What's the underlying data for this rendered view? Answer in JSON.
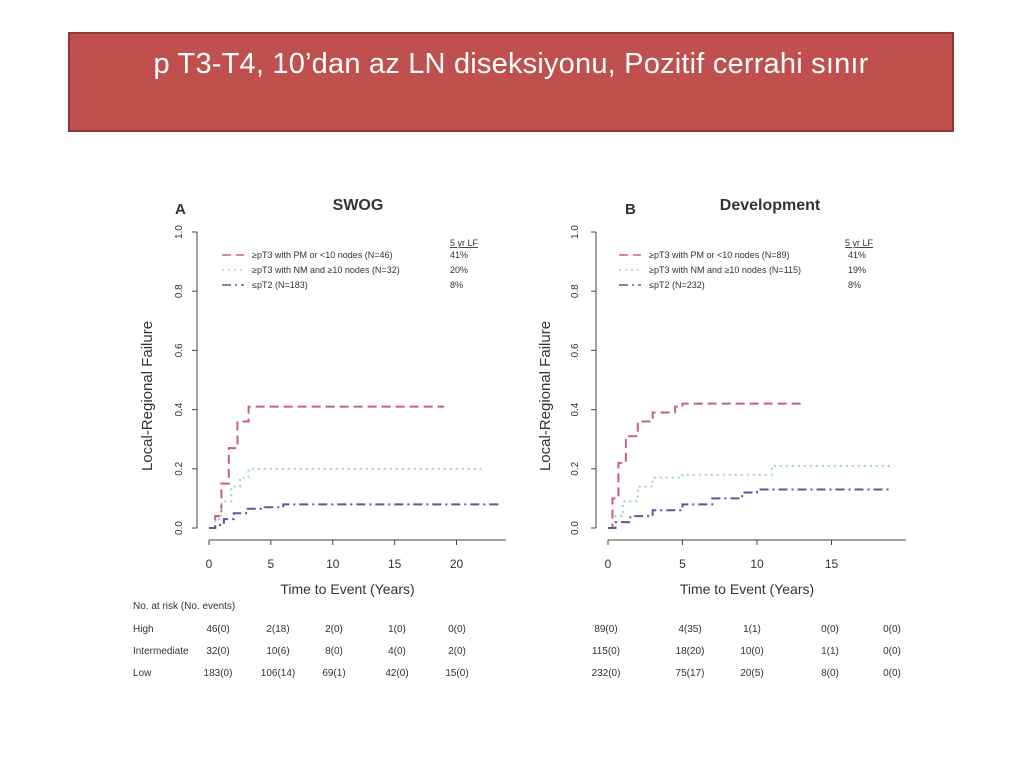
{
  "slide": {
    "title": "p T3-T4, 10’dan az LN diseksiyonu, Pozitif cerrahi sınır"
  },
  "colors": {
    "title_bg": "#c0504d",
    "high": "#c8607a",
    "intermediate": "#9fd0d8",
    "low": "#5a5a9a"
  },
  "chart_data": [
    {
      "type": "line",
      "panel_letter": "A",
      "title": "SWOG",
      "xlabel": "Time to Event (Years)",
      "ylabel": "Local-Regional Failure",
      "xlim": [
        0,
        24
      ],
      "ylim": [
        0,
        1.0
      ],
      "x_ticks": [
        0,
        5,
        10,
        15,
        20
      ],
      "y_ticks": [
        "0.0",
        "0.2",
        "0.4",
        "0.6",
        "0.8",
        "1.0"
      ],
      "legend_header": "5 yr LF",
      "series": [
        {
          "name": "≥pT3 with PM or <10 nodes (N=46)",
          "lf": "41%",
          "style": "dashed",
          "x": [
            0,
            0.5,
            1.0,
            1.6,
            2.3,
            3.2,
            19
          ],
          "y": [
            0,
            0.04,
            0.15,
            0.27,
            0.36,
            0.41,
            0.41
          ]
        },
        {
          "name": "≥pT3 with NM and ≥10 nodes (N=32)",
          "lf": "20%",
          "style": "dotted",
          "x": [
            0,
            0.5,
            1.0,
            1.8,
            2.5,
            3.2,
            22
          ],
          "y": [
            0,
            0.03,
            0.09,
            0.14,
            0.17,
            0.2,
            0.2
          ]
        },
        {
          "name": "≤pT2 (N=183)",
          "lf": "8%",
          "style": "dashdot",
          "x": [
            0,
            0.5,
            1.2,
            2.0,
            3.0,
            4.5,
            6.0,
            23.5
          ],
          "y": [
            0,
            0.01,
            0.03,
            0.05,
            0.065,
            0.07,
            0.08,
            0.08
          ]
        }
      ],
      "risk_table": {
        "header": "No. at risk (No. events)",
        "rows": [
          {
            "label": "High",
            "values": [
              "46(0)",
              "2(18)",
              "2(0)",
              "1(0)",
              "0(0)"
            ]
          },
          {
            "label": "Intermediate",
            "values": [
              "32(0)",
              "10(6)",
              "8(0)",
              "4(0)",
              "2(0)"
            ]
          },
          {
            "label": "Low",
            "values": [
              "183(0)",
              "106(14)",
              "69(1)",
              "42(0)",
              "15(0)"
            ]
          }
        ]
      }
    },
    {
      "type": "line",
      "panel_letter": "B",
      "title": "Development",
      "xlabel": "Time to Event (Years)",
      "ylabel": "Local-Regional Failure",
      "xlim": [
        0,
        20
      ],
      "ylim": [
        0,
        1.0
      ],
      "x_ticks": [
        0,
        5,
        10,
        15
      ],
      "y_ticks": [
        "0.0",
        "0.2",
        "0.4",
        "0.6",
        "0.8",
        "1.0"
      ],
      "legend_header": "5 yr LF",
      "series": [
        {
          "name": "≥pT3 with PM or <10 nodes (N=89)",
          "lf": "41%",
          "style": "dashed",
          "x": [
            0,
            0.3,
            0.7,
            1.2,
            2.0,
            3.0,
            4.5,
            5.0,
            13
          ],
          "y": [
            0,
            0.1,
            0.22,
            0.31,
            0.36,
            0.39,
            0.41,
            0.42,
            0.42
          ]
        },
        {
          "name": "≥pT3 with NM and ≥10 nodes (N=115)",
          "lf": "19%",
          "style": "dotted",
          "x": [
            0,
            0.5,
            1.0,
            2.0,
            3.0,
            5.0,
            10.5,
            11.0,
            19
          ],
          "y": [
            0,
            0.04,
            0.09,
            0.14,
            0.17,
            0.18,
            0.18,
            0.21,
            0.21
          ]
        },
        {
          "name": "≤pT2 (N=232)",
          "lf": "8%",
          "style": "dashdot",
          "x": [
            0,
            0.5,
            1.5,
            3.0,
            5.0,
            7.0,
            9.0,
            10.0,
            19
          ],
          "y": [
            0,
            0.02,
            0.04,
            0.06,
            0.08,
            0.1,
            0.12,
            0.13,
            0.13
          ]
        }
      ],
      "risk_table": {
        "header": "",
        "rows": [
          {
            "label": "",
            "values": [
              "89(0)",
              "4(35)",
              "1(1)",
              "0(0)",
              "0(0)"
            ]
          },
          {
            "label": "",
            "values": [
              "115(0)",
              "18(20)",
              "10(0)",
              "1(1)",
              "0(0)"
            ]
          },
          {
            "label": "",
            "values": [
              "232(0)",
              "75(17)",
              "20(5)",
              "8(0)",
              "0(0)"
            ]
          }
        ]
      }
    }
  ]
}
